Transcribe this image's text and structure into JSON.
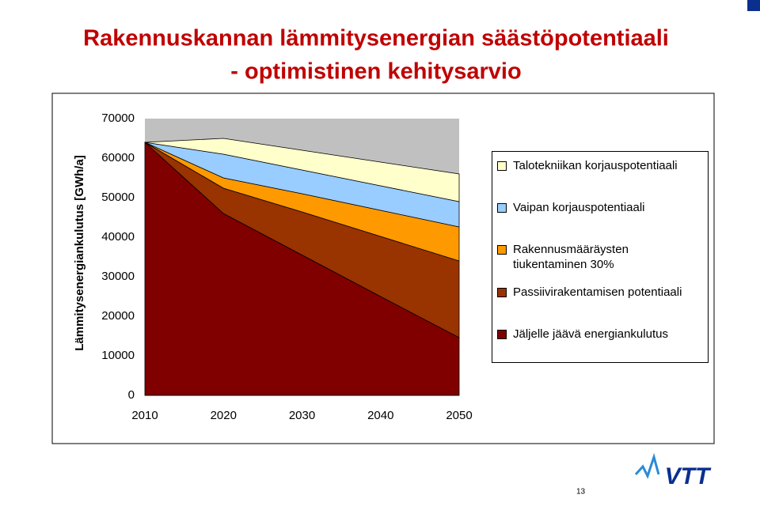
{
  "title": [
    "Rakennuskannan lämmitysenergian säästöpotentiaali",
    "- optimistinen kehitysarvio"
  ],
  "chart_data": {
    "type": "stacked-area",
    "y_label": "Lämmitysenergiankulutus [GWh/a]",
    "categories": [
      "2010",
      "2020",
      "2030",
      "2040",
      "2050"
    ],
    "series": [
      {
        "name": "Talotekniikan korjauspotentiaali",
        "color": "#ffffcc",
        "values": [
          0,
          4000,
          5000,
          6000,
          7000
        ]
      },
      {
        "name": "Vaipan korjauspotentiaali",
        "color": "#99ccff",
        "values": [
          0,
          6000,
          6000,
          6200,
          6400
        ]
      },
      {
        "name": "Rakennusmääräysten tiukentaminen 30%",
        "color": "#ff9900",
        "values": [
          0,
          2600,
          4600,
          6600,
          8600
        ]
      },
      {
        "name": "Passiivirakentamisen potentiaali",
        "color": "#993300",
        "values": [
          0,
          6400,
          10900,
          15200,
          19400
        ]
      },
      {
        "name": "Jäljelle jäävä energiankulutus",
        "color": "#800000",
        "values": [
          64000,
          46000,
          35500,
          25000,
          14600
        ]
      }
    ],
    "ylim": [
      0,
      70000
    ],
    "yticks": [
      0,
      10000,
      20000,
      30000,
      40000,
      50000,
      60000,
      70000
    ],
    "plot_background": "#c0c0c0",
    "legend": "right"
  },
  "page_number": "13",
  "logo": "VTT"
}
